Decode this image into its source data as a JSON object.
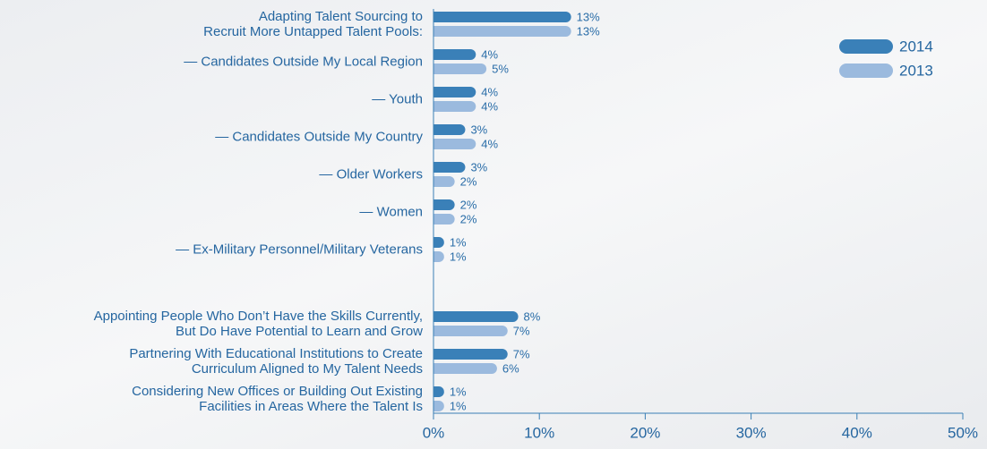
{
  "chart_data": {
    "type": "barh",
    "categories": [
      "Adapting Talent Sourcing to\nRecruit More Untapped Talent Pools:",
      "— Candidates Outside My Local Region",
      "— Youth",
      "— Candidates Outside My Country",
      "— Older Workers",
      "— Women",
      "— Ex-Military Personnel/Military Veterans",
      "Appointing People Who Don’t Have the Skills Currently,\nBut Do Have Potential to Learn and Grow",
      "Partnering With Educational Institutions to Create\nCurriculum Aligned to My Talent Needs",
      "Considering New Offices or Building Out Existing\nFacilities in Areas Where the Talent Is"
    ],
    "series": [
      {
        "name": "2014",
        "color": "#3a80b8",
        "values": [
          13,
          4,
          4,
          3,
          3,
          2,
          1,
          8,
          7,
          1
        ],
        "value_labels": [
          "13%",
          "4%",
          "4%",
          "3%",
          "3%",
          "2%",
          "1%",
          "8%",
          "7%",
          "1%"
        ]
      },
      {
        "name": "2013",
        "color": "#9bbade",
        "values": [
          13,
          5,
          4,
          4,
          2,
          2,
          1,
          7,
          6,
          1
        ],
        "value_labels": [
          "13%",
          "5%",
          "4%",
          "4%",
          "2%",
          "2%",
          "1%",
          "7%",
          "6%",
          "1%"
        ]
      }
    ],
    "xlim": [
      0,
      50
    ],
    "xticks": [
      {
        "value": 0,
        "label": "0%"
      },
      {
        "value": 10,
        "label": "10%"
      },
      {
        "value": 20,
        "label": "20%"
      },
      {
        "value": 30,
        "label": "30%"
      },
      {
        "value": 40,
        "label": "40%"
      },
      {
        "value": 50,
        "label": "50%"
      }
    ],
    "legend": "top-right"
  }
}
